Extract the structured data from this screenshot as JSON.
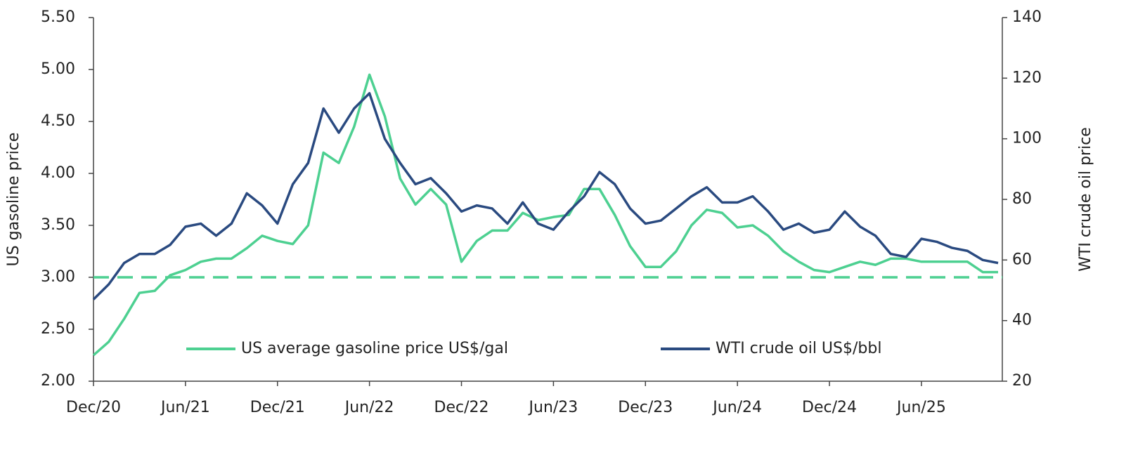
{
  "chart_data": {
    "type": "line",
    "y_axis_label": "US gasoline price",
    "y2_axis_label": "WTI crude oil price",
    "categories": [
      "Dec/20",
      null,
      null,
      null,
      null,
      null,
      "Jun/21",
      null,
      null,
      null,
      null,
      null,
      "Dec/21",
      null,
      null,
      null,
      null,
      null,
      "Jun/22",
      null,
      null,
      null,
      null,
      null,
      "Dec/22",
      null,
      null,
      null,
      null,
      null,
      "Jun/23",
      null,
      null,
      null,
      null,
      null,
      "Dec/23",
      null,
      null,
      null,
      null,
      null,
      "Jun/24",
      null,
      null,
      null,
      null,
      null,
      "Dec/24",
      null,
      null,
      null,
      null,
      null,
      "Jun/25",
      null,
      null,
      null,
      null,
      null
    ],
    "series": [
      {
        "name": "US average gasoline price US$/gal",
        "color": "#4dd091",
        "axis": "y",
        "values": [
          2.25,
          2.38,
          2.6,
          2.85,
          2.87,
          3.02,
          3.07,
          3.15,
          3.18,
          3.18,
          3.28,
          3.4,
          3.35,
          3.32,
          3.5,
          4.2,
          4.1,
          4.45,
          4.95,
          4.55,
          3.95,
          3.7,
          3.85,
          3.7,
          3.15,
          3.35,
          3.45,
          3.45,
          3.62,
          3.55,
          3.58,
          3.6,
          3.85,
          3.85,
          3.6,
          3.3,
          3.1,
          3.1,
          3.25,
          3.5,
          3.65,
          3.62,
          3.48,
          3.5,
          3.4,
          3.25,
          3.15,
          3.07,
          3.05,
          3.1,
          3.15,
          3.12,
          3.18,
          3.18,
          3.15,
          3.15,
          3.15,
          3.15,
          3.05,
          3.05
        ]
      },
      {
        "name": "WTI crude oil US$/bbl",
        "color": "#2a4a80",
        "axis": "y2",
        "values": [
          47,
          52,
          59,
          62,
          62,
          65,
          71,
          72,
          68,
          72,
          82,
          78,
          72,
          85,
          92,
          110,
          102,
          110,
          115,
          100,
          92,
          85,
          87,
          82,
          76,
          78,
          77,
          72,
          79,
          72,
          70,
          76,
          81,
          89,
          85,
          77,
          72,
          73,
          77,
          81,
          84,
          79,
          79,
          81,
          76,
          70,
          72,
          69,
          70,
          76,
          71,
          68,
          62,
          61,
          67,
          66,
          64,
          63,
          60,
          59
        ]
      }
    ],
    "reference_line": {
      "value": 3.0,
      "color": "#4dd091",
      "style": "dashed"
    },
    "ylim": [
      2.0,
      5.5
    ],
    "yticks": [
      {
        "value": 2.0,
        "label": "2.00"
      },
      {
        "value": 2.5,
        "label": "2.50"
      },
      {
        "value": 3.0,
        "label": "3.00"
      },
      {
        "value": 3.5,
        "label": "3.50"
      },
      {
        "value": 4.0,
        "label": "4.00"
      },
      {
        "value": 4.5,
        "label": "4.50"
      },
      {
        "value": 5.0,
        "label": "5.00"
      },
      {
        "value": 5.5,
        "label": "5.50"
      }
    ],
    "y2lim": [
      20,
      140
    ],
    "y2ticks": [
      20,
      40,
      60,
      80,
      100,
      120,
      140
    ],
    "grid": false,
    "legend": "bottom"
  }
}
